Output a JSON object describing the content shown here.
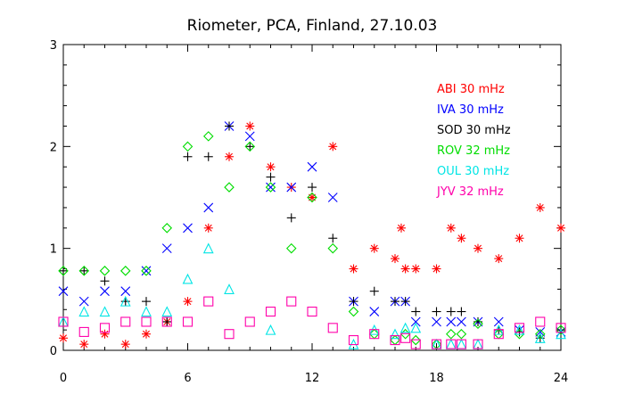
{
  "chart_data": {
    "type": "scatter",
    "title": "Riometer, PCA,  Finland, 27.10.03",
    "xlabel": "",
    "ylabel": "",
    "xlim": [
      0,
      24
    ],
    "ylim": [
      0,
      3
    ],
    "xticks": [
      0,
      6,
      12,
      18,
      24
    ],
    "xtick_labels": [
      "0",
      "6",
      "12",
      "18",
      "24"
    ],
    "yticks": [
      0,
      1,
      2,
      3
    ],
    "ytick_labels": [
      "0",
      "1",
      "2",
      "3"
    ],
    "grid": false,
    "legend_position": "top-right",
    "series": [
      {
        "name": "ABI 30 mHz",
        "color": "#ff0000",
        "marker": "asterisk",
        "points": [
          [
            0,
            0.12
          ],
          [
            1,
            0.06
          ],
          [
            2,
            0.16
          ],
          [
            3,
            0.06
          ],
          [
            4,
            0.16
          ],
          [
            5,
            0.28
          ],
          [
            6,
            0.48
          ],
          [
            7,
            1.2
          ],
          [
            8,
            1.9
          ],
          [
            9,
            2.2
          ],
          [
            10,
            1.8
          ],
          [
            11,
            1.6
          ],
          [
            12,
            1.5
          ],
          [
            13,
            2.0
          ],
          [
            14,
            0.8
          ],
          [
            15,
            1.0
          ],
          [
            16,
            0.9
          ],
          [
            16.3,
            1.2
          ],
          [
            16.5,
            0.8
          ],
          [
            17,
            0.8
          ],
          [
            18,
            0.8
          ],
          [
            18.7,
            1.2
          ],
          [
            19.2,
            1.1
          ],
          [
            20,
            1.0
          ],
          [
            21,
            0.9
          ],
          [
            22,
            1.1
          ],
          [
            23,
            1.4
          ],
          [
            24,
            1.2
          ]
        ]
      },
      {
        "name": "IVA 30 mHz",
        "color": "#0000ff",
        "marker": "x",
        "points": [
          [
            0,
            0.58
          ],
          [
            1,
            0.48
          ],
          [
            2,
            0.58
          ],
          [
            3,
            0.58
          ],
          [
            4,
            0.78
          ],
          [
            5,
            1.0
          ],
          [
            6,
            1.2
          ],
          [
            7,
            1.4
          ],
          [
            8,
            2.2
          ],
          [
            9,
            2.1
          ],
          [
            10,
            1.6
          ],
          [
            11,
            1.6
          ],
          [
            12,
            1.8
          ],
          [
            13,
            1.5
          ],
          [
            14,
            0.48
          ],
          [
            15,
            0.38
          ],
          [
            16,
            0.48
          ],
          [
            16.5,
            0.48
          ],
          [
            17,
            0.28
          ],
          [
            18,
            0.28
          ],
          [
            18.7,
            0.28
          ],
          [
            19.2,
            0.28
          ],
          [
            20,
            0.28
          ],
          [
            21,
            0.28
          ],
          [
            22,
            0.2
          ],
          [
            23,
            0.18
          ],
          [
            24,
            0.18
          ]
        ]
      },
      {
        "name": "SOD 30 mHz",
        "color": "#000000",
        "marker": "plus",
        "points": [
          [
            0,
            0.78
          ],
          [
            1,
            0.78
          ],
          [
            2,
            0.68
          ],
          [
            3,
            0.48
          ],
          [
            4,
            0.48
          ],
          [
            5,
            0.28
          ],
          [
            6,
            1.9
          ],
          [
            7,
            1.9
          ],
          [
            8,
            2.2
          ],
          [
            9,
            2.0
          ],
          [
            10,
            1.7
          ],
          [
            11,
            1.3
          ],
          [
            12,
            1.6
          ],
          [
            13,
            1.1
          ],
          [
            14,
            0.48
          ],
          [
            15,
            0.58
          ],
          [
            16,
            0.48
          ],
          [
            16.5,
            0.48
          ],
          [
            17,
            0.38
          ],
          [
            18,
            0.38
          ],
          [
            18.7,
            0.38
          ],
          [
            19.2,
            0.38
          ],
          [
            20,
            0.28
          ],
          [
            21,
            0.2
          ],
          [
            22,
            0.18
          ],
          [
            23,
            0.12
          ],
          [
            24,
            0.2
          ]
        ]
      },
      {
        "name": "ROV 32 mHz",
        "color": "#00dd00",
        "marker": "diamond",
        "points": [
          [
            0,
            0.78
          ],
          [
            1,
            0.78
          ],
          [
            2,
            0.78
          ],
          [
            3,
            0.78
          ],
          [
            4,
            0.78
          ],
          [
            5,
            1.2
          ],
          [
            6,
            2.0
          ],
          [
            7,
            2.1
          ],
          [
            8,
            1.6
          ],
          [
            9,
            2.0
          ],
          [
            10,
            1.6
          ],
          [
            11,
            1.0
          ],
          [
            12,
            1.5
          ],
          [
            13,
            1.0
          ],
          [
            14,
            0.38
          ],
          [
            15,
            0.16
          ],
          [
            16,
            0.1
          ],
          [
            16.5,
            0.16
          ],
          [
            17,
            0.1
          ],
          [
            18,
            0.06
          ],
          [
            18.7,
            0.16
          ],
          [
            19.2,
            0.16
          ],
          [
            20,
            0.26
          ],
          [
            21,
            0.16
          ],
          [
            22,
            0.16
          ],
          [
            23,
            0.16
          ],
          [
            24,
            0.2
          ]
        ]
      },
      {
        "name": "OUL 30 mHz",
        "color": "#00e5e5",
        "marker": "triangle",
        "points": [
          [
            0,
            0.28
          ],
          [
            1,
            0.38
          ],
          [
            2,
            0.38
          ],
          [
            3,
            0.48
          ],
          [
            4,
            0.38
          ],
          [
            5,
            0.38
          ],
          [
            6,
            0.7
          ],
          [
            7,
            1.0
          ],
          [
            8,
            0.6
          ],
          [
            10,
            0.2
          ],
          [
            14,
            0.06
          ],
          [
            15,
            0.2
          ],
          [
            16,
            0.16
          ],
          [
            16.5,
            0.22
          ],
          [
            17,
            0.22
          ],
          [
            18,
            0.06
          ],
          [
            18.7,
            0.06
          ],
          [
            19.2,
            0.06
          ],
          [
            20,
            0.06
          ],
          [
            21,
            0.2
          ],
          [
            22,
            0.2
          ],
          [
            23,
            0.12
          ],
          [
            24,
            0.16
          ]
        ]
      },
      {
        "name": "JYV 32 mHz",
        "color": "#ff00aa",
        "marker": "square",
        "points": [
          [
            0,
            0.28
          ],
          [
            1,
            0.18
          ],
          [
            2,
            0.22
          ],
          [
            3,
            0.28
          ],
          [
            4,
            0.28
          ],
          [
            5,
            0.28
          ],
          [
            6,
            0.28
          ],
          [
            7,
            0.48
          ],
          [
            8,
            0.16
          ],
          [
            9,
            0.28
          ],
          [
            10,
            0.38
          ],
          [
            11,
            0.48
          ],
          [
            12,
            0.38
          ],
          [
            13,
            0.22
          ],
          [
            14,
            0.1
          ],
          [
            15,
            0.16
          ],
          [
            16,
            0.1
          ],
          [
            16.5,
            0.12
          ],
          [
            17,
            0.06
          ],
          [
            18,
            0.06
          ],
          [
            18.7,
            0.06
          ],
          [
            19.2,
            0.06
          ],
          [
            20,
            0.06
          ],
          [
            21,
            0.16
          ],
          [
            22,
            0.22
          ],
          [
            23,
            0.28
          ],
          [
            24,
            0.22
          ]
        ]
      }
    ]
  }
}
